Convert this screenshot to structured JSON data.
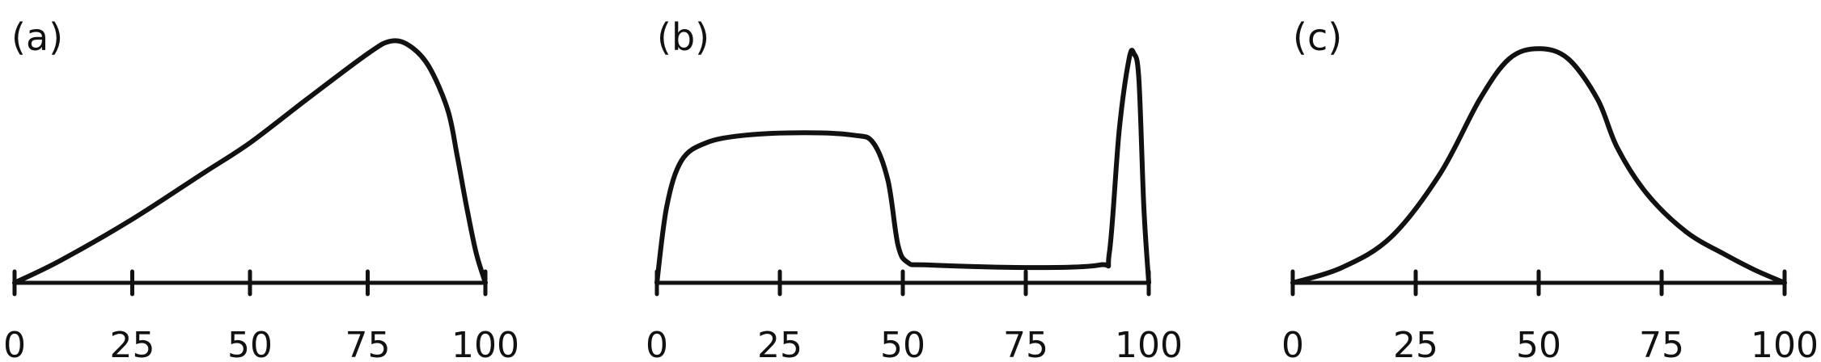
{
  "chart_data": [
    {
      "type": "line",
      "panel_label": "(a)",
      "xlim": [
        0,
        100
      ],
      "x_ticks": [
        0,
        25,
        50,
        75,
        100
      ],
      "x_tick_labels": [
        "0",
        "25",
        "50",
        "75",
        "100"
      ],
      "ylim": [
        0,
        1
      ],
      "x": [
        0,
        10,
        25,
        40,
        50,
        62,
        75,
        80,
        84,
        88,
        92,
        94,
        96,
        98,
        100
      ],
      "y": [
        0,
        0.09,
        0.25,
        0.43,
        0.55,
        0.72,
        0.9,
        0.95,
        0.93,
        0.85,
        0.68,
        0.5,
        0.3,
        0.12,
        0
      ]
    },
    {
      "type": "line",
      "panel_label": "(b)",
      "xlim": [
        0,
        100
      ],
      "x_ticks": [
        0,
        25,
        50,
        75,
        100
      ],
      "x_tick_labels": [
        "0",
        "25",
        "50",
        "75",
        "100"
      ],
      "ylim": [
        0,
        1
      ],
      "x": [
        0,
        2,
        5,
        10,
        18,
        30,
        40,
        44,
        47,
        49,
        51,
        55,
        75,
        90,
        92,
        94,
        96,
        97,
        98,
        99,
        100
      ],
      "y": [
        0,
        0.3,
        0.48,
        0.55,
        0.58,
        0.59,
        0.58,
        0.55,
        0.4,
        0.15,
        0.08,
        0.07,
        0.06,
        0.07,
        0.12,
        0.6,
        0.88,
        0.9,
        0.8,
        0.3,
        0
      ]
    },
    {
      "type": "line",
      "panel_label": "(c)",
      "xlim": [
        0,
        100
      ],
      "x_ticks": [
        0,
        25,
        50,
        75,
        100
      ],
      "x_tick_labels": [
        "0",
        "25",
        "50",
        "75",
        "100"
      ],
      "ylim": [
        0,
        1
      ],
      "x": [
        0,
        10,
        20,
        30,
        38,
        44,
        50,
        56,
        62,
        66,
        72,
        80,
        88,
        94,
        100
      ],
      "y": [
        0,
        0.06,
        0.18,
        0.43,
        0.72,
        0.88,
        0.92,
        0.88,
        0.72,
        0.53,
        0.35,
        0.2,
        0.11,
        0.05,
        0
      ]
    }
  ]
}
